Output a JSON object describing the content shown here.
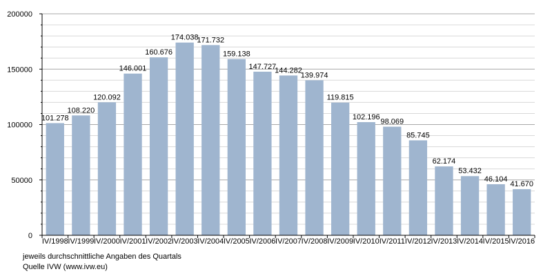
{
  "chart_data": {
    "type": "bar",
    "categories": [
      "IV/1998",
      "IV/1999",
      "IV/2000",
      "IV/2001",
      "IV/2002",
      "IV/2003",
      "IV/2004",
      "IV/2005",
      "IV/2006",
      "IV/2007",
      "IV/2008",
      "IV/2009",
      "IV/2010",
      "IV/2011",
      "IV/2012",
      "IV/2013",
      "IV/2014",
      "IV/2015",
      "IV/2016"
    ],
    "values": [
      101278,
      108220,
      120092,
      146001,
      160676,
      174038,
      171732,
      159138,
      147727,
      144282,
      139974,
      119815,
      102196,
      98069,
      85745,
      62174,
      53432,
      46104,
      41670
    ],
    "data_labels": [
      "101.278",
      "108.220",
      "120.092",
      "146.001",
      "160.676",
      "174.038",
      "171.732",
      "159.138",
      "147.727",
      "144.282",
      "139.974",
      "119.815",
      "102.196",
      "98.069",
      "85.745",
      "62.174",
      "53.432",
      "46.104",
      "41.670"
    ],
    "yticks": [
      0,
      50000,
      100000,
      150000,
      200000
    ],
    "ytick_labels": [
      "0",
      "50000",
      "100000",
      "150000",
      "200000"
    ],
    "ylim": [
      0,
      200000
    ],
    "grid": true,
    "bar_color": "#9fb5cf",
    "grid_color": "#d8d8d8"
  },
  "notes": {
    "line1": "jeweils durchschnittliche Angaben des Quartals",
    "line2": "Quelle IVW (www.ivw.eu)"
  }
}
